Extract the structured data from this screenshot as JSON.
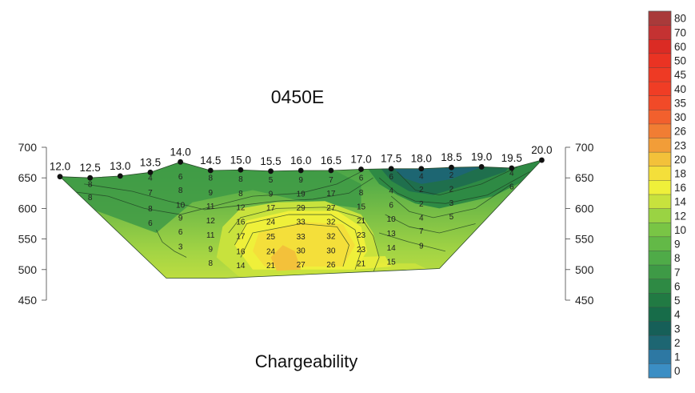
{
  "chart_data": {
    "type": "heatmap",
    "title": "0450E",
    "subtitle": "Chargeability",
    "xlabel": "",
    "ylabel": "",
    "stations": [
      {
        "label": "12.0",
        "x": 12.0,
        "elev": 652
      },
      {
        "label": "12.5",
        "x": 12.5,
        "elev": 650
      },
      {
        "label": "13.0",
        "x": 13.0,
        "elev": 653
      },
      {
        "label": "13.5",
        "x": 13.5,
        "elev": 659
      },
      {
        "label": "14.0",
        "x": 14.0,
        "elev": 676
      },
      {
        "label": "14.5",
        "x": 14.5,
        "elev": 662
      },
      {
        "label": "15.0",
        "x": 15.0,
        "elev": 663
      },
      {
        "label": "15.5",
        "x": 15.5,
        "elev": 661
      },
      {
        "label": "16.0",
        "x": 16.0,
        "elev": 662
      },
      {
        "label": "16.5",
        "x": 16.5,
        "elev": 662
      },
      {
        "label": "17.0",
        "x": 17.0,
        "elev": 664
      },
      {
        "label": "17.5",
        "x": 17.5,
        "elev": 665
      },
      {
        "label": "18.0",
        "x": 18.0,
        "elev": 665
      },
      {
        "label": "18.5",
        "x": 18.5,
        "elev": 667
      },
      {
        "label": "19.0",
        "x": 19.0,
        "elev": 668
      },
      {
        "label": "19.5",
        "x": 19.5,
        "elev": 666
      },
      {
        "label": "20.0",
        "x": 20.0,
        "elev": 679
      }
    ],
    "y_axis": {
      "ticks": [
        "700",
        "650",
        "600",
        "550",
        "500",
        "450"
      ],
      "values": [
        700,
        650,
        600,
        550,
        500,
        450
      ],
      "ylim": [
        450,
        700
      ]
    },
    "section_bottom_elev": 486,
    "data_labels": [
      {
        "x": 12.5,
        "y": 640,
        "v": "8"
      },
      {
        "x": 12.5,
        "y": 618,
        "v": "8"
      },
      {
        "x": 13.5,
        "y": 650,
        "v": "4"
      },
      {
        "x": 13.5,
        "y": 626,
        "v": "7"
      },
      {
        "x": 13.5,
        "y": 600,
        "v": "8"
      },
      {
        "x": 13.5,
        "y": 576,
        "v": "6"
      },
      {
        "x": 14.0,
        "y": 652,
        "v": "6"
      },
      {
        "x": 14.0,
        "y": 630,
        "v": "8"
      },
      {
        "x": 14.0,
        "y": 606,
        "v": "10"
      },
      {
        "x": 14.0,
        "y": 585,
        "v": "9"
      },
      {
        "x": 14.0,
        "y": 562,
        "v": "6"
      },
      {
        "x": 14.0,
        "y": 538,
        "v": "3"
      },
      {
        "x": 14.5,
        "y": 650,
        "v": "8"
      },
      {
        "x": 14.5,
        "y": 626,
        "v": "9"
      },
      {
        "x": 14.5,
        "y": 604,
        "v": "11"
      },
      {
        "x": 14.5,
        "y": 580,
        "v": "12"
      },
      {
        "x": 14.5,
        "y": 557,
        "v": "11"
      },
      {
        "x": 14.5,
        "y": 534,
        "v": "9"
      },
      {
        "x": 14.5,
        "y": 511,
        "v": "8"
      },
      {
        "x": 15.0,
        "y": 648,
        "v": "8"
      },
      {
        "x": 15.0,
        "y": 625,
        "v": "8"
      },
      {
        "x": 15.0,
        "y": 602,
        "v": "12"
      },
      {
        "x": 15.0,
        "y": 578,
        "v": "16"
      },
      {
        "x": 15.0,
        "y": 555,
        "v": "17"
      },
      {
        "x": 15.0,
        "y": 530,
        "v": "16"
      },
      {
        "x": 15.0,
        "y": 507,
        "v": "14"
      },
      {
        "x": 15.5,
        "y": 647,
        "v": "5"
      },
      {
        "x": 15.5,
        "y": 624,
        "v": "9"
      },
      {
        "x": 15.5,
        "y": 601,
        "v": "17"
      },
      {
        "x": 15.5,
        "y": 578,
        "v": "24"
      },
      {
        "x": 15.5,
        "y": 554,
        "v": "25"
      },
      {
        "x": 15.5,
        "y": 530,
        "v": "24"
      },
      {
        "x": 15.5,
        "y": 507,
        "v": "21"
      },
      {
        "x": 16.0,
        "y": 647,
        "v": "9"
      },
      {
        "x": 16.0,
        "y": 624,
        "v": "19"
      },
      {
        "x": 16.0,
        "y": 601,
        "v": "29"
      },
      {
        "x": 16.0,
        "y": 578,
        "v": "33"
      },
      {
        "x": 16.0,
        "y": 554,
        "v": "33"
      },
      {
        "x": 16.0,
        "y": 531,
        "v": "30"
      },
      {
        "x": 16.0,
        "y": 508,
        "v": "27"
      },
      {
        "x": 16.5,
        "y": 647,
        "v": "7"
      },
      {
        "x": 16.5,
        "y": 625,
        "v": "17"
      },
      {
        "x": 16.5,
        "y": 601,
        "v": "27"
      },
      {
        "x": 16.5,
        "y": 578,
        "v": "32"
      },
      {
        "x": 16.5,
        "y": 555,
        "v": "32"
      },
      {
        "x": 16.5,
        "y": 531,
        "v": "30"
      },
      {
        "x": 16.5,
        "y": 508,
        "v": "26"
      },
      {
        "x": 17.0,
        "y": 650,
        "v": "6"
      },
      {
        "x": 17.0,
        "y": 626,
        "v": "8"
      },
      {
        "x": 17.0,
        "y": 603,
        "v": "15"
      },
      {
        "x": 17.0,
        "y": 580,
        "v": "21"
      },
      {
        "x": 17.0,
        "y": 557,
        "v": "23"
      },
      {
        "x": 17.0,
        "y": 533,
        "v": "23"
      },
      {
        "x": 17.0,
        "y": 510,
        "v": "21"
      },
      {
        "x": 17.5,
        "y": 652,
        "v": "6"
      },
      {
        "x": 17.5,
        "y": 629,
        "v": "4"
      },
      {
        "x": 17.5,
        "y": 606,
        "v": "6"
      },
      {
        "x": 17.5,
        "y": 583,
        "v": "10"
      },
      {
        "x": 17.5,
        "y": 559,
        "v": "13"
      },
      {
        "x": 17.5,
        "y": 536,
        "v": "14"
      },
      {
        "x": 17.5,
        "y": 513,
        "v": "15"
      },
      {
        "x": 18.0,
        "y": 653,
        "v": "4"
      },
      {
        "x": 18.0,
        "y": 631,
        "v": "2"
      },
      {
        "x": 18.0,
        "y": 608,
        "v": "2"
      },
      {
        "x": 18.0,
        "y": 585,
        "v": "4"
      },
      {
        "x": 18.0,
        "y": 563,
        "v": "7"
      },
      {
        "x": 18.0,
        "y": 539,
        "v": "9"
      },
      {
        "x": 18.5,
        "y": 655,
        "v": "2"
      },
      {
        "x": 18.5,
        "y": 632,
        "v": "2"
      },
      {
        "x": 18.5,
        "y": 609,
        "v": "3"
      },
      {
        "x": 18.5,
        "y": 587,
        "v": "5"
      },
      {
        "x": 19.5,
        "y": 658,
        "v": "4"
      },
      {
        "x": 19.5,
        "y": 636,
        "v": "6"
      }
    ],
    "colorbar": {
      "labels": [
        "80",
        "70",
        "60",
        "50",
        "45",
        "40",
        "35",
        "30",
        "26",
        "23",
        "20",
        "18",
        "16",
        "14",
        "12",
        "10",
        "9",
        "8",
        "7",
        "6",
        "5",
        "4",
        "3",
        "2",
        "1",
        "0"
      ],
      "colors": [
        "#a93a3a",
        "#c43232",
        "#db2b24",
        "#ea3323",
        "#ee3a24",
        "#f03d25",
        "#f14a28",
        "#f2602d",
        "#f17d33",
        "#f29d38",
        "#f3c13a",
        "#f4df3a",
        "#eff03a",
        "#c8e23d",
        "#9ad343",
        "#79c545",
        "#63b947",
        "#4fab48",
        "#3e9a46",
        "#2e8a44",
        "#217a43",
        "#176c49",
        "#165f58",
        "#1d6672",
        "#2d78a3",
        "#3b8ec4"
      ]
    }
  }
}
